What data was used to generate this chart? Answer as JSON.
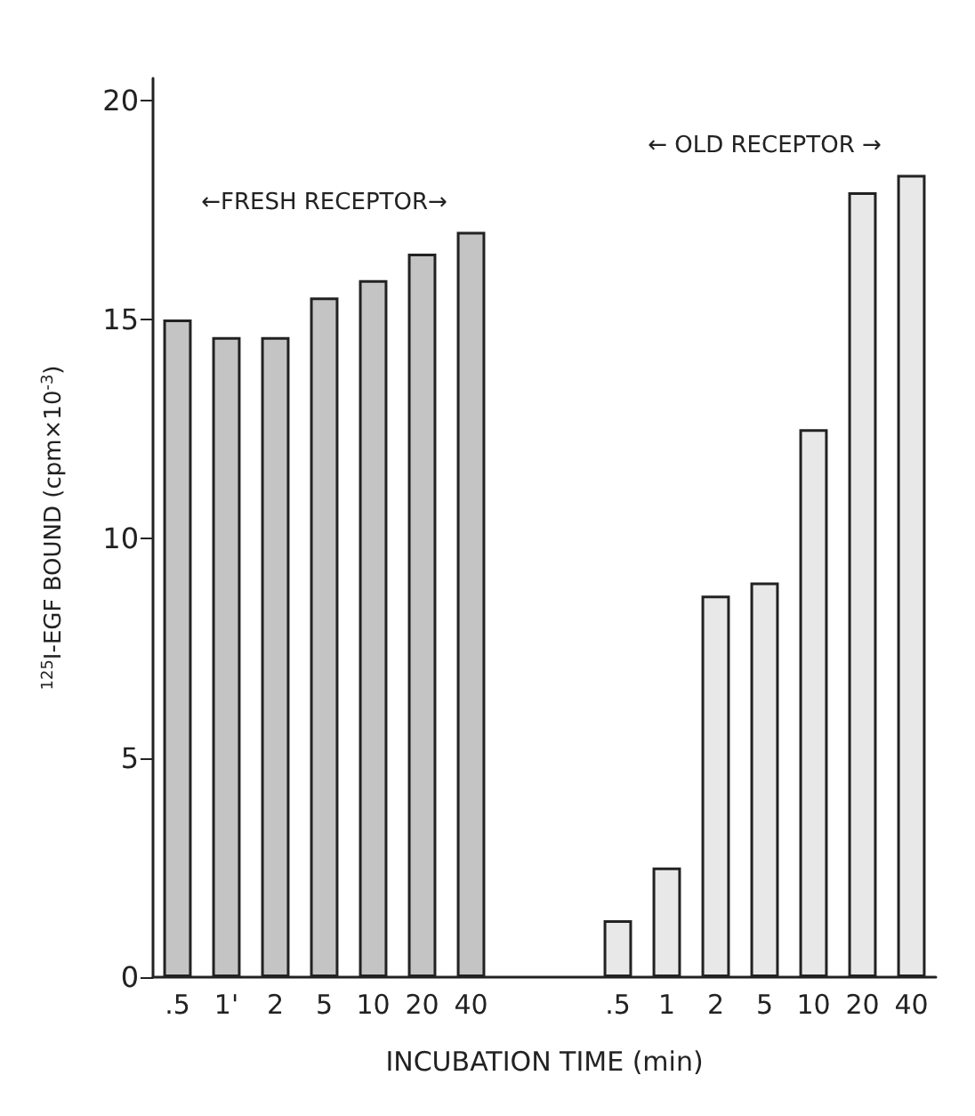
{
  "chart_data": {
    "type": "bar",
    "xlabel": "INCUBATION TIME (min)",
    "ylabel": "$^{125}$I-EGF BOUND (cpm×10$^{-3}$)",
    "categories": [
      ".5",
      "1'",
      "2",
      "5",
      "10",
      "20",
      "40",
      null,
      null,
      ".5",
      "1",
      "2",
      "5",
      "10",
      "20",
      "40"
    ],
    "series": [
      {
        "name": "←FRESH RECEPTOR→",
        "color": "#c4c4c4",
        "values": [
          15.0,
          14.6,
          14.6,
          15.5,
          15.9,
          16.5,
          17.0,
          null,
          null,
          null,
          null,
          null,
          null,
          null,
          null,
          null
        ]
      },
      {
        "name": "← OLD RECEPTOR →",
        "color": "#e8e8e8",
        "values": [
          null,
          null,
          null,
          null,
          null,
          null,
          null,
          null,
          null,
          1.3,
          2.5,
          8.7,
          9.0,
          12.5,
          17.9,
          18.3
        ]
      }
    ],
    "ylim": [
      0,
      20.5
    ],
    "yticks": [
      0,
      5,
      10,
      15,
      20
    ],
    "grid": false,
    "legend": false
  }
}
